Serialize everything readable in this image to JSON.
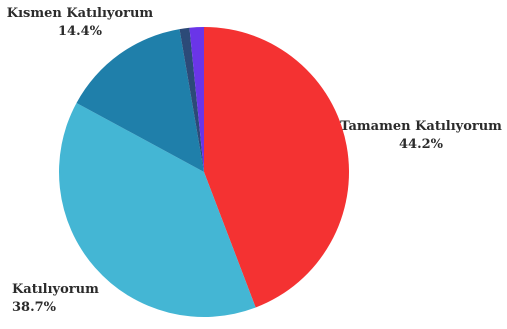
{
  "chart_data": {
    "type": "pie",
    "title": "",
    "slices": [
      {
        "label": "Tamamen Katılıyorum",
        "value": 44.2,
        "value_label": "44.2%",
        "color": "#f43232"
      },
      {
        "label": "Katılıyorum",
        "value": 38.7,
        "value_label": "38.7%",
        "color": "#44b6d4"
      },
      {
        "label": "Kısmen Katılıyorum",
        "value": 14.4,
        "value_label": "14.4%",
        "color": "#1f7faa"
      },
      {
        "label": "",
        "value": 1.1,
        "value_label": "",
        "color": "#2c4a78"
      },
      {
        "label": "",
        "value": 1.6,
        "value_label": "",
        "color": "#6a35e8"
      }
    ],
    "legend": "none"
  }
}
